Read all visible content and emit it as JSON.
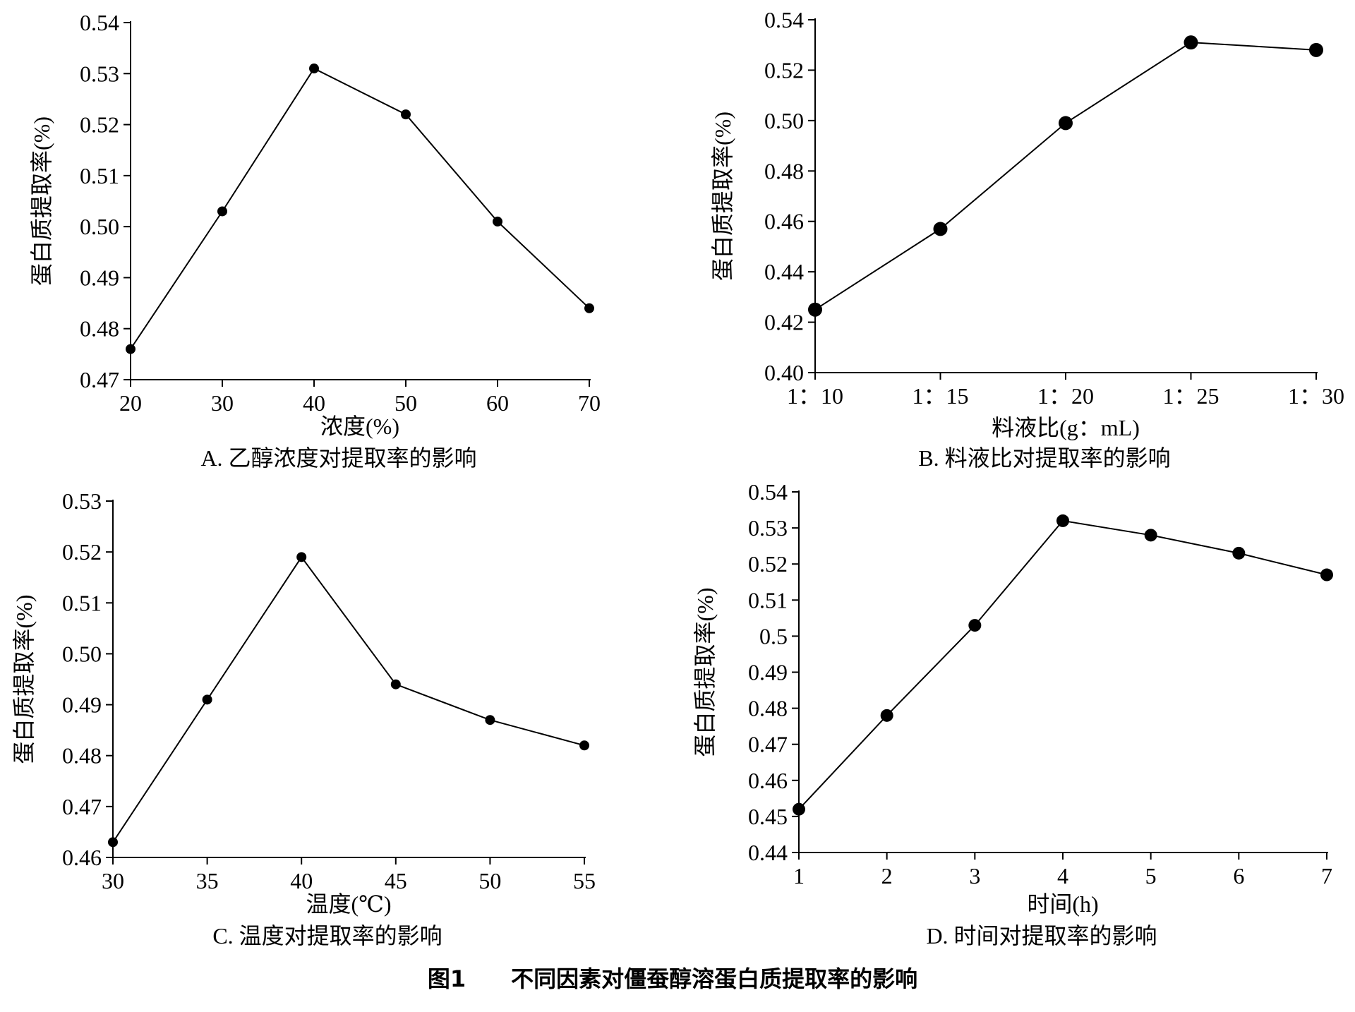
{
  "figure_caption": "图1　　不同因素对僵蚕醇溶蛋白质提取率的影响",
  "chart_data": [
    {
      "type": "line",
      "caption": "A. 乙醇浓度对提取率的影响",
      "xlabel": "浓度(%)",
      "ylabel": "蛋白质提取率(%)",
      "x_ticks": [
        "20",
        "30",
        "40",
        "50",
        "60",
        "70"
      ],
      "x_values": [
        20,
        30,
        40,
        50,
        60,
        70
      ],
      "xlim": [
        20,
        70
      ],
      "y_ticks": [
        "0.47",
        "0.48",
        "0.49",
        "0.50",
        "0.51",
        "0.52",
        "0.53",
        "0.54"
      ],
      "ylim": [
        0.47,
        0.54
      ],
      "series": [
        {
          "x": [
            20,
            30,
            40,
            50,
            60,
            70
          ],
          "y": [
            0.476,
            0.503,
            0.531,
            0.522,
            0.501,
            0.484
          ]
        }
      ],
      "grid": false
    },
    {
      "type": "line",
      "caption": "B. 料液比对提取率的影响",
      "xlabel": "料液比(g：mL)",
      "ylabel": "蛋白质提取率(%)",
      "x_ticks": [
        "1：10",
        "1：15",
        "1：20",
        "1：25",
        "1：30"
      ],
      "categories": [
        "1：10",
        "1：15",
        "1：20",
        "1：25",
        "1：30"
      ],
      "y_ticks": [
        "0.40",
        "0.42",
        "0.44",
        "0.46",
        "0.48",
        "0.50",
        "0.52",
        "0.54"
      ],
      "ylim": [
        0.4,
        0.54
      ],
      "series": [
        {
          "y": [
            0.425,
            0.457,
            0.499,
            0.531,
            0.528
          ]
        }
      ],
      "grid": false
    },
    {
      "type": "line",
      "caption": "C. 温度对提取率的影响",
      "xlabel": "温度(℃)",
      "ylabel": "蛋白质提取率(%)",
      "x_ticks": [
        "30",
        "35",
        "40",
        "45",
        "50",
        "55"
      ],
      "x_values": [
        30,
        35,
        40,
        45,
        50,
        55
      ],
      "xlim": [
        30,
        55
      ],
      "y_ticks": [
        "0.46",
        "0.47",
        "0.48",
        "0.49",
        "0.50",
        "0.51",
        "0.52",
        "0.53"
      ],
      "ylim": [
        0.46,
        0.53
      ],
      "series": [
        {
          "x": [
            30,
            35,
            40,
            45,
            50,
            55
          ],
          "y": [
            0.463,
            0.491,
            0.519,
            0.494,
            0.487,
            0.482
          ]
        }
      ],
      "grid": false
    },
    {
      "type": "line",
      "caption": "D. 时间对提取率的影响",
      "xlabel": "时间(h)",
      "ylabel": "蛋白质提取率(%)",
      "x_ticks": [
        "1",
        "2",
        "3",
        "4",
        "5",
        "6",
        "7"
      ],
      "x_values": [
        1,
        2,
        3,
        4,
        5,
        6,
        7
      ],
      "xlim": [
        1,
        7
      ],
      "y_ticks": [
        "0.44",
        "0.45",
        "0.46",
        "0.47",
        "0.48",
        "0.49",
        "0.5",
        "0.51",
        "0.52",
        "0.53",
        "0.54"
      ],
      "ylim": [
        0.44,
        0.54
      ],
      "series": [
        {
          "x": [
            1,
            2,
            3,
            4,
            5,
            6,
            7
          ],
          "y": [
            0.452,
            0.478,
            0.503,
            0.532,
            0.528,
            0.523,
            0.517
          ]
        }
      ],
      "grid": false
    }
  ]
}
